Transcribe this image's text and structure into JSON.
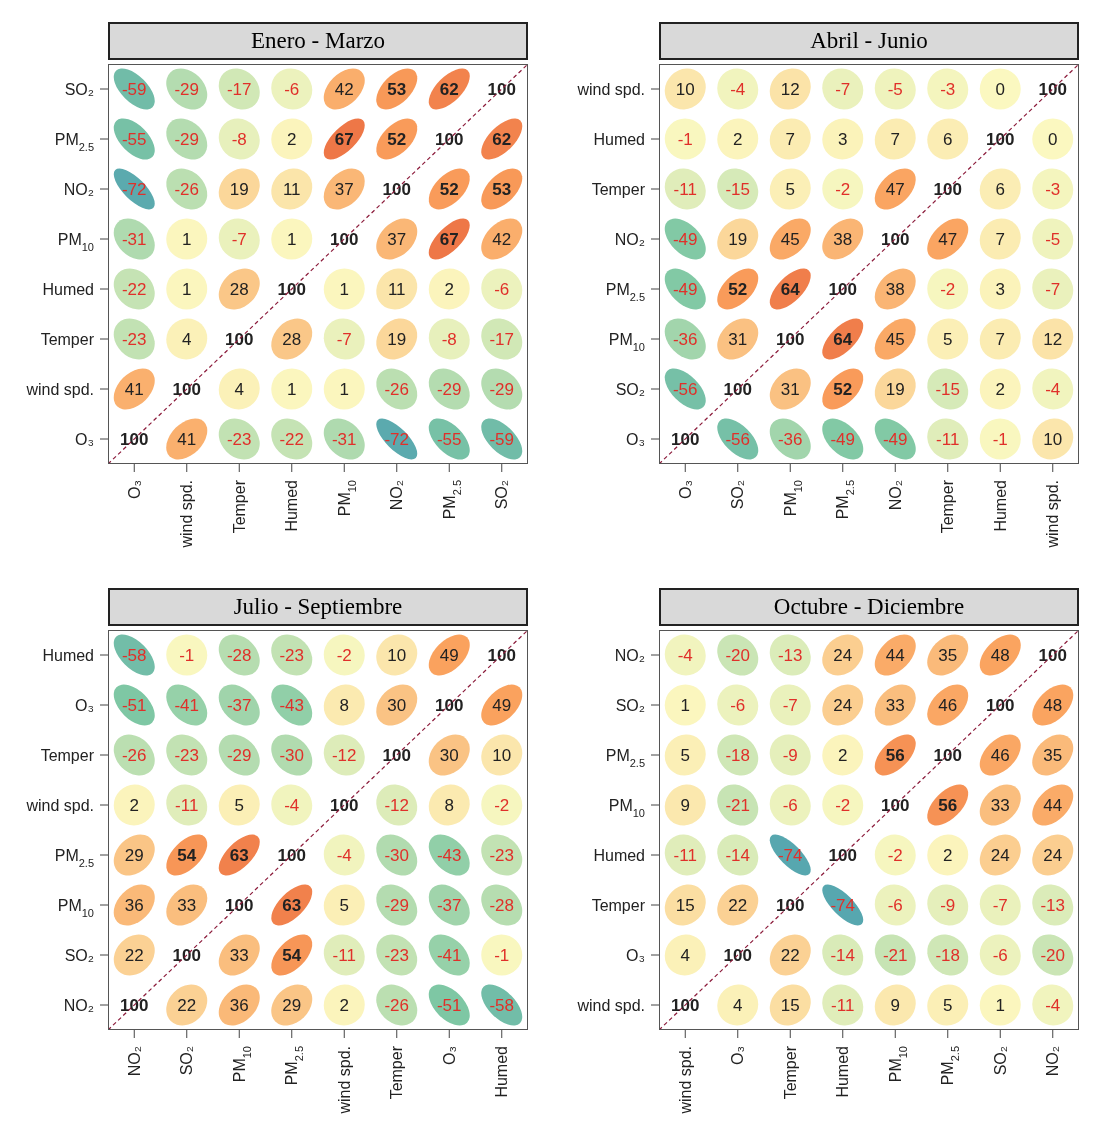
{
  "chart_data": [
    {
      "type": "heatmap",
      "data_labels": true,
      "title": "Enero - Marzo",
      "categories": [
        "O₃",
        "wind spd.",
        "Temper",
        "Humed",
        "PM$_{10}$",
        "NO₂",
        "PM$_{2.5}$",
        "SO₂"
      ],
      "y_categories": [
        "SO₂",
        "PM$_{2.5}$",
        "NO₂",
        "PM$_{10}$",
        "Humed",
        "Temper",
        "wind spd.",
        "O₃"
      ],
      "cells": [
        [
          -59,
          -29,
          -17,
          -6,
          42,
          53,
          62,
          100
        ],
        [
          -55,
          -29,
          -8,
          2,
          67,
          52,
          100,
          62
        ],
        [
          -72,
          -26,
          19,
          11,
          37,
          100,
          52,
          53
        ],
        [
          -31,
          1,
          -7,
          1,
          100,
          37,
          67,
          42
        ],
        [
          -22,
          1,
          28,
          100,
          1,
          11,
          2,
          -6
        ],
        [
          -23,
          4,
          100,
          28,
          -7,
          19,
          -8,
          -17
        ],
        [
          41,
          100,
          4,
          1,
          1,
          -26,
          -29,
          -29
        ],
        [
          100,
          41,
          -23,
          -22,
          -31,
          -72,
          -55,
          -59
        ]
      ]
    },
    {
      "type": "heatmap",
      "data_labels": true,
      "title": "Abril - Junio",
      "categories": [
        "O₃",
        "SO₂",
        "PM$_{10}$",
        "PM$_{2.5}$",
        "NO₂",
        "Temper",
        "Humed",
        "wind spd."
      ],
      "y_categories": [
        "wind spd.",
        "Humed",
        "Temper",
        "NO₂",
        "PM$_{2.5}$",
        "PM$_{10}$",
        "SO₂",
        "O₃"
      ],
      "cells": [
        [
          10,
          -4,
          12,
          -7,
          -5,
          -3,
          0,
          100
        ],
        [
          -1,
          2,
          7,
          3,
          7,
          6,
          100,
          0
        ],
        [
          -11,
          -15,
          5,
          -2,
          47,
          100,
          6,
          -3
        ],
        [
          -49,
          19,
          45,
          38,
          100,
          47,
          7,
          -5
        ],
        [
          -49,
          52,
          64,
          100,
          38,
          -2,
          3,
          -7
        ],
        [
          -36,
          31,
          100,
          64,
          45,
          5,
          7,
          12
        ],
        [
          -56,
          100,
          31,
          52,
          19,
          -15,
          2,
          -4
        ],
        [
          100,
          -56,
          -36,
          -49,
          -49,
          -11,
          -1,
          10
        ]
      ]
    },
    {
      "type": "heatmap",
      "data_labels": true,
      "title": "Julio - Septiembre",
      "categories": [
        "NO₂",
        "SO₂",
        "PM$_{10}$",
        "PM$_{2.5}$",
        "wind spd.",
        "Temper",
        "O₃",
        "Humed"
      ],
      "y_categories": [
        "Humed",
        "O₃",
        "Temper",
        "wind spd.",
        "PM$_{2.5}$",
        "PM$_{10}$",
        "SO₂",
        "NO₂"
      ],
      "cells": [
        [
          -58,
          -1,
          -28,
          -23,
          -2,
          10,
          49,
          100
        ],
        [
          -51,
          -41,
          -37,
          -43,
          8,
          30,
          100,
          49
        ],
        [
          -26,
          -23,
          -29,
          -30,
          -12,
          100,
          30,
          10
        ],
        [
          2,
          -11,
          5,
          -4,
          100,
          -12,
          8,
          -2
        ],
        [
          29,
          54,
          63,
          100,
          -4,
          -30,
          -43,
          -23
        ],
        [
          36,
          33,
          100,
          63,
          5,
          -29,
          -37,
          -28
        ],
        [
          22,
          100,
          33,
          54,
          -11,
          -23,
          -41,
          -1
        ],
        [
          100,
          22,
          36,
          29,
          2,
          -26,
          -51,
          -58
        ]
      ]
    },
    {
      "type": "heatmap",
      "data_labels": true,
      "title": "Octubre - Diciembre",
      "categories": [
        "wind spd.",
        "O₃",
        "Temper",
        "Humed",
        "PM$_{10}$",
        "PM$_{2.5}$",
        "SO₂",
        "NO₂"
      ],
      "y_categories": [
        "NO₂",
        "SO₂",
        "PM$_{2.5}$",
        "PM$_{10}$",
        "Humed",
        "Temper",
        "O₃",
        "wind spd."
      ],
      "cells": [
        [
          -4,
          -20,
          -13,
          24,
          44,
          35,
          48,
          100
        ],
        [
          1,
          -6,
          -7,
          24,
          33,
          46,
          100,
          48
        ],
        [
          5,
          -18,
          -9,
          2,
          56,
          100,
          46,
          35
        ],
        [
          9,
          -21,
          -6,
          -2,
          100,
          56,
          33,
          44
        ],
        [
          -11,
          -14,
          -74,
          100,
          -2,
          2,
          24,
          24
        ],
        [
          15,
          22,
          100,
          -74,
          -6,
          -9,
          -7,
          -13
        ],
        [
          4,
          100,
          22,
          -14,
          -21,
          -18,
          -6,
          -20
        ],
        [
          100,
          4,
          15,
          -11,
          9,
          5,
          1,
          -4
        ]
      ]
    }
  ]
}
